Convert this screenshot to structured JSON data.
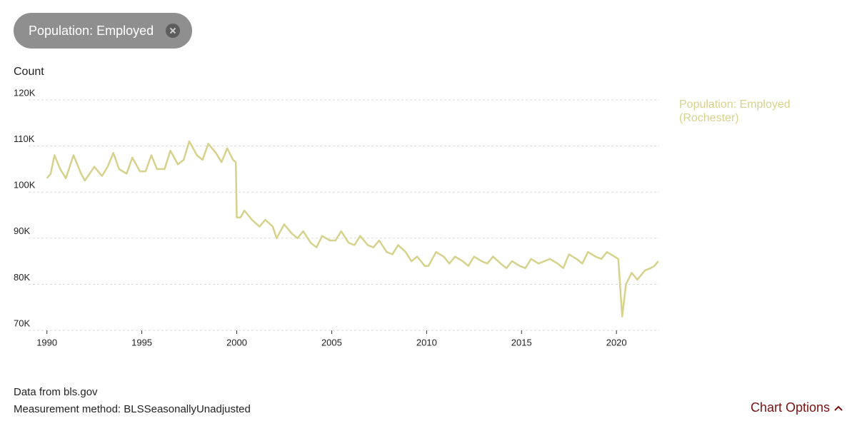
{
  "filter_chip": "Population: Employed",
  "footer": {
    "source": "Data from bls.gov",
    "method": "Measurement method: BLSSeasonallyUnadjusted",
    "options": "Chart Options"
  },
  "chart_data": {
    "type": "line",
    "y_label": "Count",
    "xlim": [
      1989.9,
      2022.25
    ],
    "xticks": [
      1990,
      1995,
      2000,
      2005,
      2010,
      2015,
      2020
    ],
    "ylim": [
      70000,
      120000
    ],
    "yticks": [
      {
        "value": 70000,
        "label": "70K"
      },
      {
        "value": 80000,
        "label": "80K"
      },
      {
        "value": 90000,
        "label": "90K"
      },
      {
        "value": 100000,
        "label": "100K"
      },
      {
        "value": 110000,
        "label": "110K"
      },
      {
        "value": 120000,
        "label": "120K"
      }
    ],
    "grid": true,
    "legend": "right",
    "x": [
      1990.0,
      1990.2,
      1990.4,
      1990.7,
      1991.0,
      1991.4,
      1991.8,
      1992.0,
      1992.5,
      1992.9,
      1993.2,
      1993.5,
      1993.8,
      1994.2,
      1994.5,
      1994.9,
      1995.2,
      1995.5,
      1995.8,
      1996.2,
      1996.5,
      1996.9,
      1997.2,
      1997.5,
      1997.9,
      1998.2,
      1998.5,
      1998.9,
      1999.2,
      1999.5,
      1999.8,
      1999.95,
      2000.0,
      2000.2,
      2000.4,
      2000.8,
      2001.2,
      2001.5,
      2001.9,
      2002.1,
      2002.5,
      2002.9,
      2003.2,
      2003.5,
      2003.9,
      2004.2,
      2004.5,
      2004.9,
      2005.2,
      2005.5,
      2005.9,
      2006.2,
      2006.5,
      2006.9,
      2007.2,
      2007.5,
      2007.9,
      2008.2,
      2008.5,
      2008.9,
      2009.2,
      2009.5,
      2009.9,
      2010.1,
      2010.5,
      2010.9,
      2011.2,
      2011.5,
      2011.9,
      2012.2,
      2012.5,
      2012.9,
      2013.2,
      2013.5,
      2013.9,
      2014.2,
      2014.5,
      2014.9,
      2015.2,
      2015.5,
      2015.9,
      2016.2,
      2016.5,
      2016.9,
      2017.2,
      2017.5,
      2017.9,
      2018.2,
      2018.5,
      2018.9,
      2019.2,
      2019.5,
      2019.9,
      2020.1,
      2020.3,
      2020.5,
      2020.8,
      2021.1,
      2021.5,
      2021.8,
      2022.0,
      2022.2
    ],
    "series": [
      {
        "name": "Population: Employed (Rochester)",
        "color": "#d6d28c",
        "values": [
          103000,
          104000,
          108000,
          105000,
          103000,
          108000,
          104000,
          102500,
          105500,
          103500,
          105500,
          108500,
          105000,
          104000,
          107500,
          104500,
          104500,
          108000,
          105000,
          105000,
          109000,
          106000,
          107000,
          111000,
          108000,
          107000,
          110500,
          108500,
          106500,
          109500,
          107000,
          106500,
          94500,
          94500,
          96000,
          94000,
          92500,
          94000,
          92500,
          90000,
          93000,
          91000,
          90000,
          91500,
          89000,
          88000,
          90500,
          89500,
          89500,
          91500,
          89000,
          88500,
          90500,
          88500,
          88000,
          89500,
          87000,
          86500,
          88500,
          87000,
          85000,
          86000,
          84000,
          84000,
          87000,
          86000,
          84500,
          86000,
          85000,
          84000,
          86000,
          85000,
          84500,
          86000,
          84500,
          83500,
          85000,
          84000,
          83500,
          85500,
          84500,
          85000,
          85500,
          84500,
          83500,
          86500,
          85500,
          84500,
          87000,
          86000,
          85500,
          87000,
          86000,
          85500,
          73000,
          80000,
          82500,
          81000,
          83000,
          83500,
          84000,
          85000
        ]
      }
    ]
  }
}
